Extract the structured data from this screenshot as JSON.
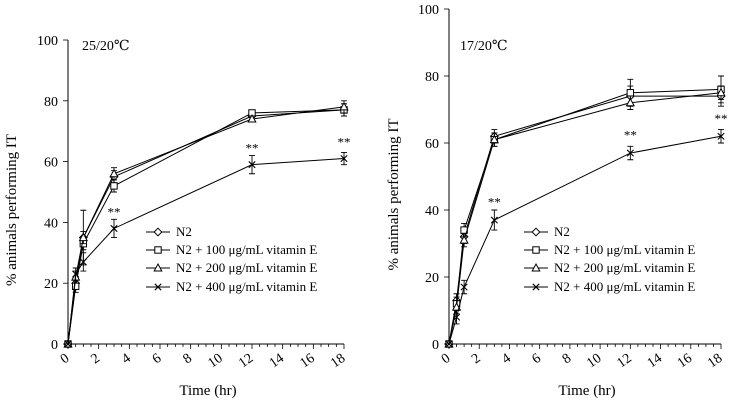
{
  "chart_data": [
    {
      "type": "line",
      "condition_label": "25/20℃",
      "xlabel": "Time (hr)",
      "ylabel": "% animals performing IT",
      "xlim": [
        0,
        18
      ],
      "ylim": [
        0,
        100
      ],
      "x_ticks": [
        "0",
        "2",
        "4",
        "6",
        "8",
        "10",
        "12",
        "14",
        "16",
        "18"
      ],
      "y_ticks": [
        "0",
        "20",
        "40",
        "60",
        "80",
        "100"
      ],
      "x": [
        0,
        0.5,
        1,
        3,
        12,
        18
      ],
      "series": [
        {
          "name": "N2",
          "marker": "diamond",
          "values": [
            0,
            20,
            35,
            55,
            75,
            77
          ],
          "errors": [
            0,
            2,
            9,
            2,
            1,
            2
          ]
        },
        {
          "name": "N2 + 100 μg/mL vitamin E",
          "marker": "square",
          "values": [
            0,
            19,
            33,
            52,
            76,
            77
          ],
          "errors": [
            0,
            2,
            2,
            2,
            1,
            2
          ]
        },
        {
          "name": "N2 + 200 μg/mL vitamin E",
          "marker": "triangle",
          "values": [
            0,
            22,
            35,
            56,
            74,
            78
          ],
          "errors": [
            0,
            2,
            2,
            2,
            1,
            2
          ]
        },
        {
          "name": "N2 + 400 μg/mL vitamin E",
          "marker": "cross",
          "values": [
            0,
            23,
            27,
            38,
            59,
            61
          ],
          "errors": [
            0,
            2,
            3,
            3,
            3,
            2
          ]
        }
      ],
      "annotations": [
        {
          "text": "**",
          "x": 3,
          "y": 42
        },
        {
          "text": "**",
          "x": 12,
          "y": 63
        },
        {
          "text": "**",
          "x": 18,
          "y": 65
        }
      ],
      "legend": "center-right",
      "grid": false
    },
    {
      "type": "line",
      "condition_label": "17/20℃",
      "xlabel": "Time (hr)",
      "ylabel": "% animals performing IT",
      "xlim": [
        0,
        18
      ],
      "ylim": [
        0,
        100
      ],
      "x_ticks": [
        "0",
        "2",
        "4",
        "6",
        "8",
        "10",
        "12",
        "14",
        "16",
        "18"
      ],
      "y_ticks": [
        "0",
        "20",
        "40",
        "60",
        "80",
        "100"
      ],
      "x": [
        0,
        0.5,
        1,
        3,
        12,
        18
      ],
      "series": [
        {
          "name": "N2",
          "marker": "diamond",
          "values": [
            0,
            13,
            32,
            62,
            74,
            74
          ],
          "errors": [
            0,
            2,
            2,
            2,
            3,
            3
          ]
        },
        {
          "name": "N2 + 100 μg/mL vitamin E",
          "marker": "square",
          "values": [
            0,
            12,
            34,
            61,
            75,
            76
          ],
          "errors": [
            0,
            2,
            2,
            2,
            4,
            4
          ]
        },
        {
          "name": "N2 + 200 μg/mL vitamin E",
          "marker": "triangle",
          "values": [
            0,
            11,
            31,
            61,
            72,
            75
          ],
          "errors": [
            0,
            2,
            2,
            2,
            2,
            2
          ]
        },
        {
          "name": "N2 + 400 μg/mL vitamin E",
          "marker": "cross",
          "values": [
            0,
            8,
            17,
            37,
            57,
            62
          ],
          "errors": [
            0,
            2,
            2,
            3,
            2,
            2
          ]
        }
      ],
      "annotations": [
        {
          "text": "**",
          "x": 3,
          "y": 41
        },
        {
          "text": "**",
          "x": 12,
          "y": 61
        },
        {
          "text": "**",
          "x": 18,
          "y": 66
        }
      ],
      "legend": "center-right",
      "grid": false
    }
  ]
}
